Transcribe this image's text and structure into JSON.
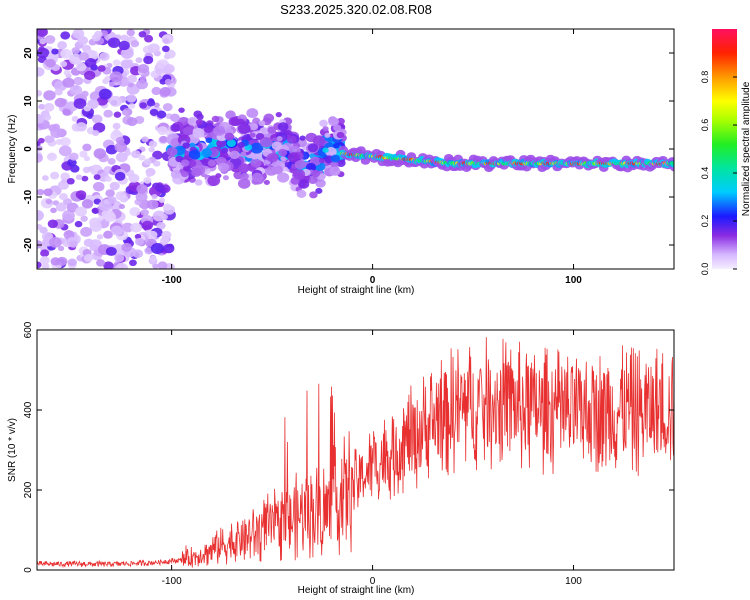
{
  "title": "S233.2025.320.02.08.R08",
  "chart_data": [
    {
      "type": "heatmap",
      "title": "S233.2025.320.02.08.R08",
      "xlabel": "Height of straight line (km)",
      "ylabel": "Frequency (Hz)",
      "xlim": [
        -167,
        150
      ],
      "ylim": [
        -25,
        25
      ],
      "xticks": [
        -100,
        0,
        100
      ],
      "xtick_labels": [
        "-100",
        "0",
        "100"
      ],
      "yticks": [
        -20,
        -10,
        0,
        10,
        20
      ],
      "ytick_labels": [
        "-20",
        "-10",
        "0",
        "10",
        "20"
      ],
      "colorbar": {
        "label": "Normalized spectral amplitude",
        "range": [
          0,
          1
        ],
        "ticks": [
          0.0,
          0.2,
          0.4,
          0.6,
          0.8
        ],
        "tick_labels": [
          "0.0",
          "0.2",
          "0.4",
          "0.6",
          "0.8"
        ]
      },
      "regions": [
        {
          "name": "scattered-noise",
          "x_range": [
            -167,
            -100
          ],
          "freq_range": [
            -25,
            25
          ],
          "amplitude": 0.1
        },
        {
          "name": "broad-signal",
          "x_range": [
            -100,
            -15
          ],
          "freq_center": 0,
          "freq_spread": 6,
          "amplitude": 0.3
        },
        {
          "name": "narrow-tone",
          "x_range": [
            -15,
            150
          ],
          "freq_start": -1,
          "freq_end": -3,
          "amplitude": 0.9
        }
      ]
    },
    {
      "type": "line",
      "xlabel": "Height of straight line (km)",
      "ylabel": "SNR (10 * v/v)",
      "xlim": [
        -167,
        150
      ],
      "ylim": [
        0,
        600
      ],
      "xticks": [
        -100,
        0,
        100
      ],
      "xtick_labels": [
        "-100",
        "0",
        "100"
      ],
      "yticks": [
        0,
        200,
        400,
        600
      ],
      "ytick_labels": [
        "0",
        "200",
        "400",
        "600"
      ],
      "series": [
        {
          "name": "SNR",
          "color": "#e83030",
          "x": [
            -167,
            -150,
            -130,
            -110,
            -95,
            -85,
            -75,
            -65,
            -55,
            -45,
            -35,
            -25,
            -15,
            -8,
            0,
            5,
            10,
            20,
            30,
            40,
            50,
            60,
            70,
            80,
            90,
            100,
            110,
            120,
            130,
            140,
            150
          ],
          "y": [
            15,
            15,
            15,
            18,
            25,
            40,
            60,
            80,
            100,
            120,
            140,
            150,
            180,
            220,
            260,
            275,
            295,
            330,
            370,
            400,
            410,
            415,
            410,
            400,
            395,
            390,
            395,
            400,
            395,
            400,
            410
          ]
        }
      ]
    }
  ]
}
